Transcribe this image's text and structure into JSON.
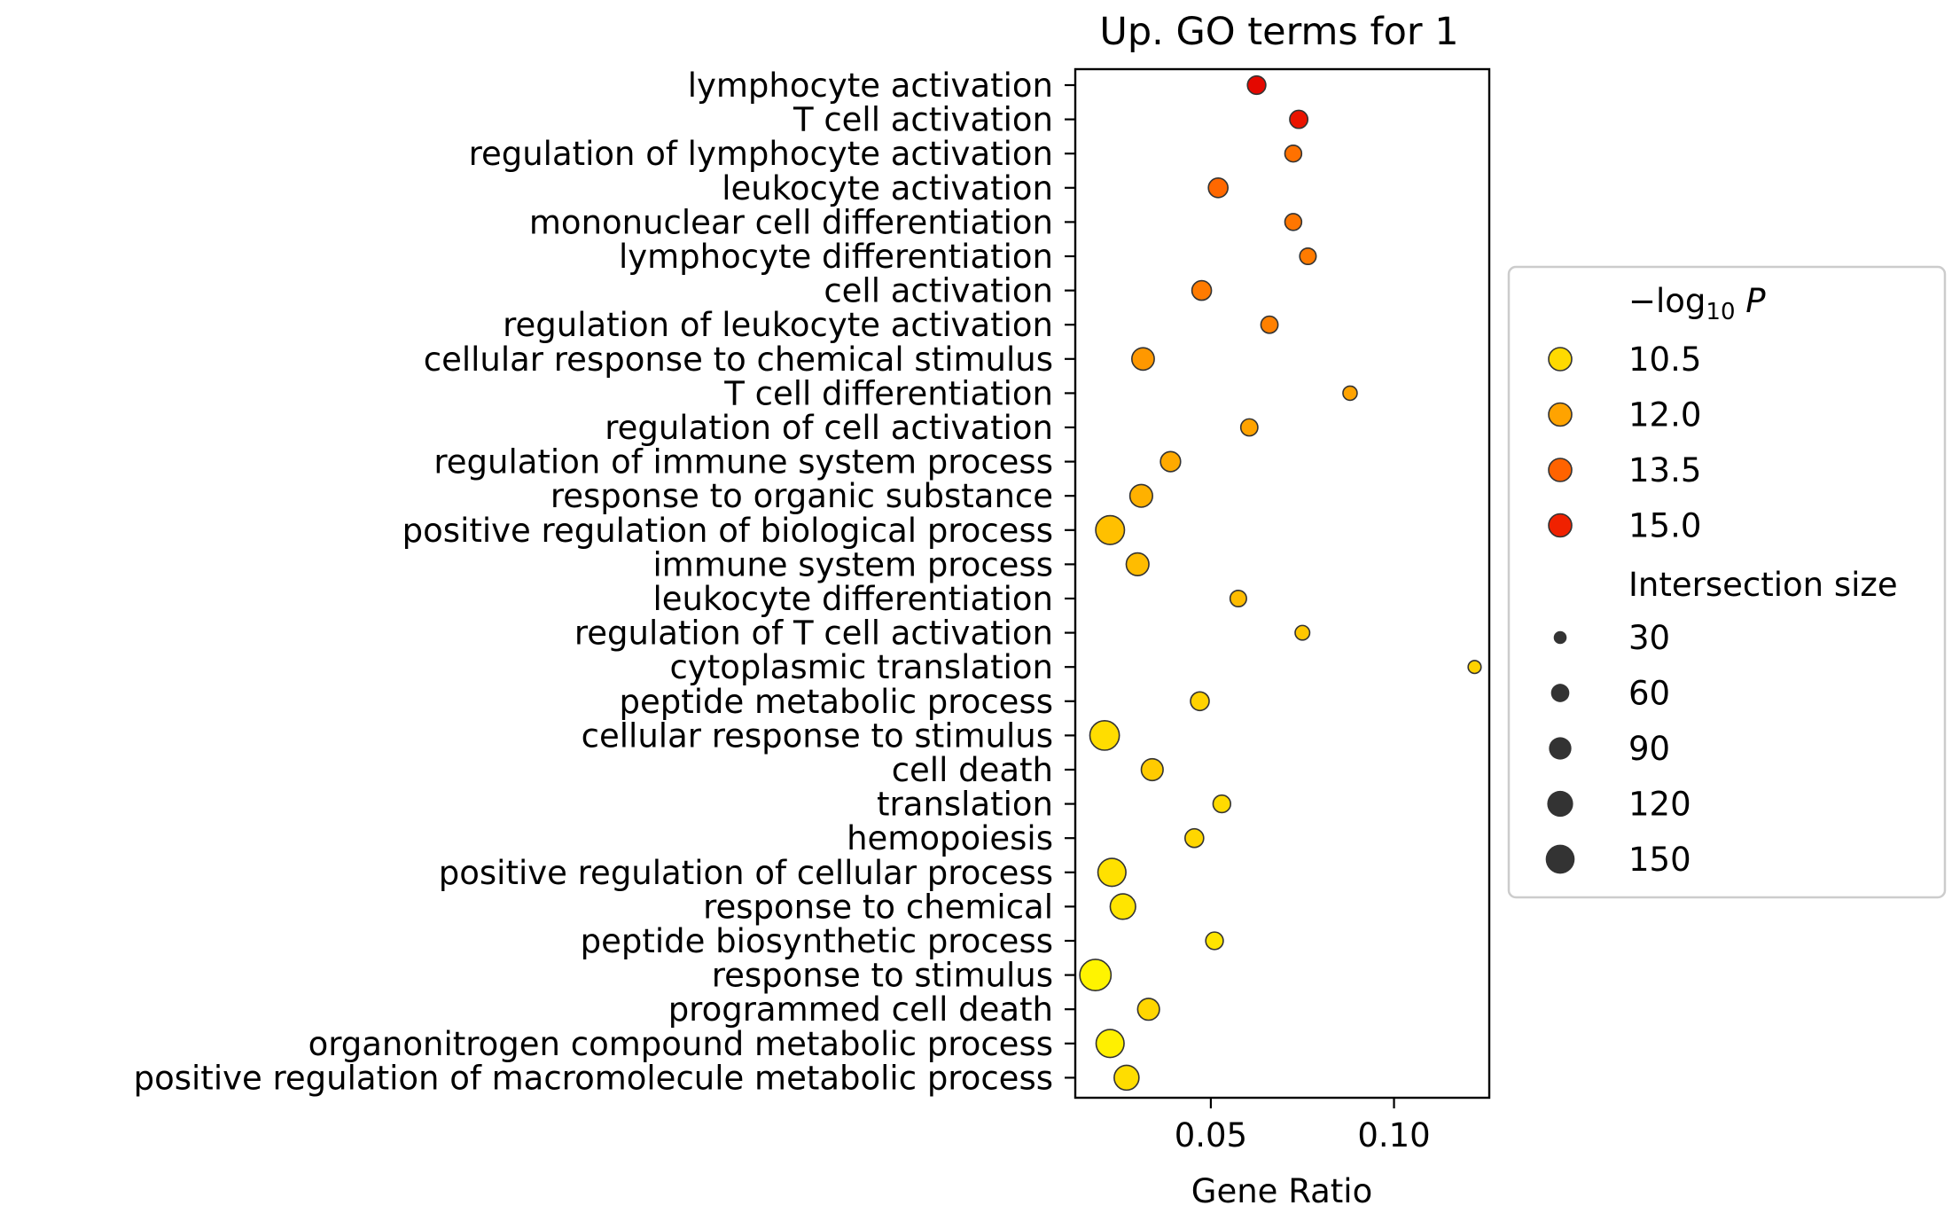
{
  "chart_data": {
    "type": "scatter",
    "title": "Up. GO terms for 1",
    "xlabel": "Gene Ratio",
    "ylabel": "",
    "xlim": [
      0.013,
      0.126
    ],
    "xticks": [
      0.05,
      0.1
    ],
    "xtick_labels": [
      "0.05",
      "0.10"
    ],
    "grid": false,
    "legend_placement": "right-outside",
    "color_scale": {
      "min": 9.5,
      "max": 15.8,
      "stops": [
        "#ffff00",
        "#ffc400",
        "#ff8c00",
        "#ff4000",
        "#e00000"
      ]
    },
    "points": [
      {
        "term": "lymphocyte activation",
        "x": 0.0625,
        "neg_log10_p": 15.6,
        "size": 60
      },
      {
        "term": "T cell activation",
        "x": 0.074,
        "neg_log10_p": 15.3,
        "size": 58
      },
      {
        "term": "regulation of lymphocyte activation",
        "x": 0.0725,
        "neg_log10_p": 13.2,
        "size": 50
      },
      {
        "term": "leukocyte activation",
        "x": 0.052,
        "neg_log10_p": 13.4,
        "size": 68
      },
      {
        "term": "mononuclear cell differentiation",
        "x": 0.0725,
        "neg_log10_p": 13.1,
        "size": 50
      },
      {
        "term": "lymphocyte differentiation",
        "x": 0.0765,
        "neg_log10_p": 13.0,
        "size": 48
      },
      {
        "term": "cell activation",
        "x": 0.0475,
        "neg_log10_p": 13.0,
        "size": 68
      },
      {
        "term": "regulation of leukocyte activation",
        "x": 0.066,
        "neg_log10_p": 12.9,
        "size": 52
      },
      {
        "term": "cellular response to chemical stimulus",
        "x": 0.0315,
        "neg_log10_p": 12.3,
        "size": 90
      },
      {
        "term": "T cell differentiation",
        "x": 0.088,
        "neg_log10_p": 12.0,
        "size": 36
      },
      {
        "term": "regulation of cell activation",
        "x": 0.0605,
        "neg_log10_p": 12.0,
        "size": 52
      },
      {
        "term": "regulation of immune system process",
        "x": 0.039,
        "neg_log10_p": 11.8,
        "size": 72
      },
      {
        "term": "response to organic substance",
        "x": 0.031,
        "neg_log10_p": 11.6,
        "size": 92
      },
      {
        "term": "positive regulation of biological process",
        "x": 0.0225,
        "neg_log10_p": 11.2,
        "size": 148
      },
      {
        "term": "immune system process",
        "x": 0.03,
        "neg_log10_p": 11.3,
        "size": 92
      },
      {
        "term": "leukocyte differentiation",
        "x": 0.0575,
        "neg_log10_p": 11.3,
        "size": 48
      },
      {
        "term": "regulation of T cell activation",
        "x": 0.075,
        "neg_log10_p": 11.0,
        "size": 38
      },
      {
        "term": "cytoplasmic translation",
        "x": 0.122,
        "neg_log10_p": 10.7,
        "size": 30
      },
      {
        "term": "peptide metabolic process",
        "x": 0.047,
        "neg_log10_p": 10.7,
        "size": 62
      },
      {
        "term": "cellular response to stimulus",
        "x": 0.021,
        "neg_log10_p": 10.4,
        "size": 155
      },
      {
        "term": "cell death",
        "x": 0.034,
        "neg_log10_p": 10.9,
        "size": 85
      },
      {
        "term": "translation",
        "x": 0.053,
        "neg_log10_p": 10.5,
        "size": 55
      },
      {
        "term": "hemopoiesis",
        "x": 0.0455,
        "neg_log10_p": 10.6,
        "size": 62
      },
      {
        "term": "positive regulation of cellular process",
        "x": 0.023,
        "neg_log10_p": 10.3,
        "size": 140
      },
      {
        "term": "response to chemical",
        "x": 0.026,
        "neg_log10_p": 10.2,
        "size": 115
      },
      {
        "term": "peptide biosynthetic process",
        "x": 0.051,
        "neg_log10_p": 10.2,
        "size": 55
      },
      {
        "term": "response to stimulus",
        "x": 0.0185,
        "neg_log10_p": 9.8,
        "size": 175
      },
      {
        "term": "programmed cell death",
        "x": 0.033,
        "neg_log10_p": 10.6,
        "size": 85
      },
      {
        "term": "organonitrogen compound metabolic process",
        "x": 0.0225,
        "neg_log10_p": 9.9,
        "size": 140
      },
      {
        "term": "positive regulation of macromolecule metabolic process",
        "x": 0.027,
        "neg_log10_p": 10.4,
        "size": 110
      }
    ],
    "legend": {
      "color_title": "−log₁₀ P",
      "color_entries": [
        {
          "label": "10.5",
          "value": 10.5
        },
        {
          "label": "12.0",
          "value": 12.0
        },
        {
          "label": "13.5",
          "value": 13.5
        },
        {
          "label": "15.0",
          "value": 15.0
        }
      ],
      "size_title": "Intersection size",
      "size_entries": [
        {
          "label": "30",
          "value": 30
        },
        {
          "label": "60",
          "value": 60
        },
        {
          "label": "90",
          "value": 90
        },
        {
          "label": "120",
          "value": 120
        },
        {
          "label": "150",
          "value": 150
        }
      ]
    }
  }
}
